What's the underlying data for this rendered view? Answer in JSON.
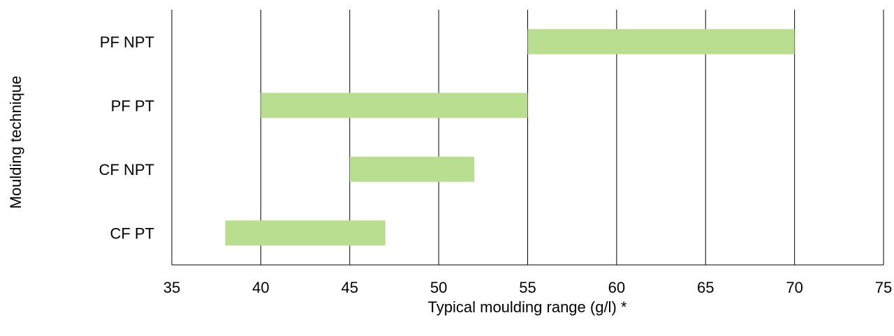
{
  "chart_data": {
    "type": "bar",
    "orientation": "horizontal",
    "title": "",
    "xlabel": "Typical moulding range (g/l) *",
    "ylabel": "Moulding technique",
    "xlim": [
      35,
      75
    ],
    "xticks": [
      35,
      40,
      45,
      50,
      55,
      60,
      65,
      70,
      75
    ],
    "grid": "vertical",
    "legend": "none",
    "bar_color": "#b9de8f",
    "categories": [
      "PF NPT",
      "PF PT",
      "CF NPT",
      "CF PT"
    ],
    "ranges": [
      {
        "category": "PF NPT",
        "start": 55,
        "end": 70
      },
      {
        "category": "PF PT",
        "start": 40,
        "end": 55
      },
      {
        "category": "CF NPT",
        "start": 45,
        "end": 52
      },
      {
        "category": "CF PT",
        "start": 38,
        "end": 47
      }
    ]
  }
}
